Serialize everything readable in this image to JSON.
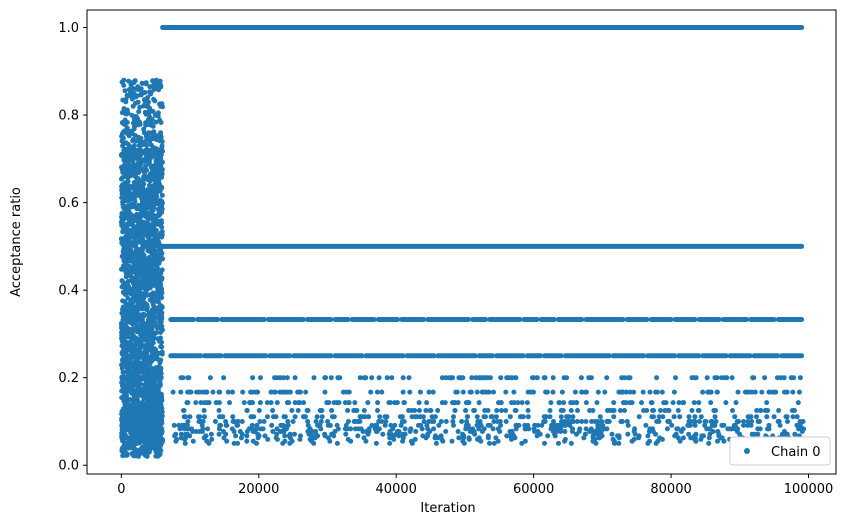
{
  "chart_data": {
    "type": "scatter",
    "xlabel": "Iteration",
    "ylabel": "Acceptance ratio",
    "xlim": [
      -5000,
      104000
    ],
    "ylim": [
      -0.02,
      1.04
    ],
    "x_ticks": [
      0,
      20000,
      40000,
      60000,
      80000,
      100000
    ],
    "x_tick_labels": [
      "0",
      "20000",
      "40000",
      "60000",
      "80000",
      "100000"
    ],
    "y_ticks": [
      0.0,
      0.2,
      0.4,
      0.6,
      0.8,
      1.0
    ],
    "y_tick_labels": [
      "0.0",
      "0.2",
      "0.4",
      "0.6",
      "0.8",
      "1.0"
    ],
    "grid": false,
    "legend_position": "lower-right",
    "marker_color": "#1f77b4",
    "series": [
      {
        "name": "Chain 0",
        "x": [
          0,
          300,
          600,
          900,
          1200,
          1500,
          1800,
          2100,
          2400,
          2700,
          3000,
          3300,
          3600,
          3900,
          4200,
          4500,
          4800,
          5100,
          5400,
          5700,
          6000,
          10000,
          20000,
          30000,
          40000,
          50000,
          60000,
          70000,
          80000,
          90000,
          99000
        ],
        "y": [
          0.31,
          0.55,
          0.42,
          0.68,
          0.12,
          0.49,
          0.75,
          0.25,
          0.6,
          0.38,
          0.82,
          0.05,
          0.5,
          0.66,
          0.2,
          0.44,
          0.94,
          0.3,
          0.57,
          0.03,
          1.0,
          0.5,
          0.33,
          0.25,
          0.2,
          0.17,
          0.14,
          0.11,
          1.0,
          0.5,
          0.33
        ]
      }
    ]
  }
}
